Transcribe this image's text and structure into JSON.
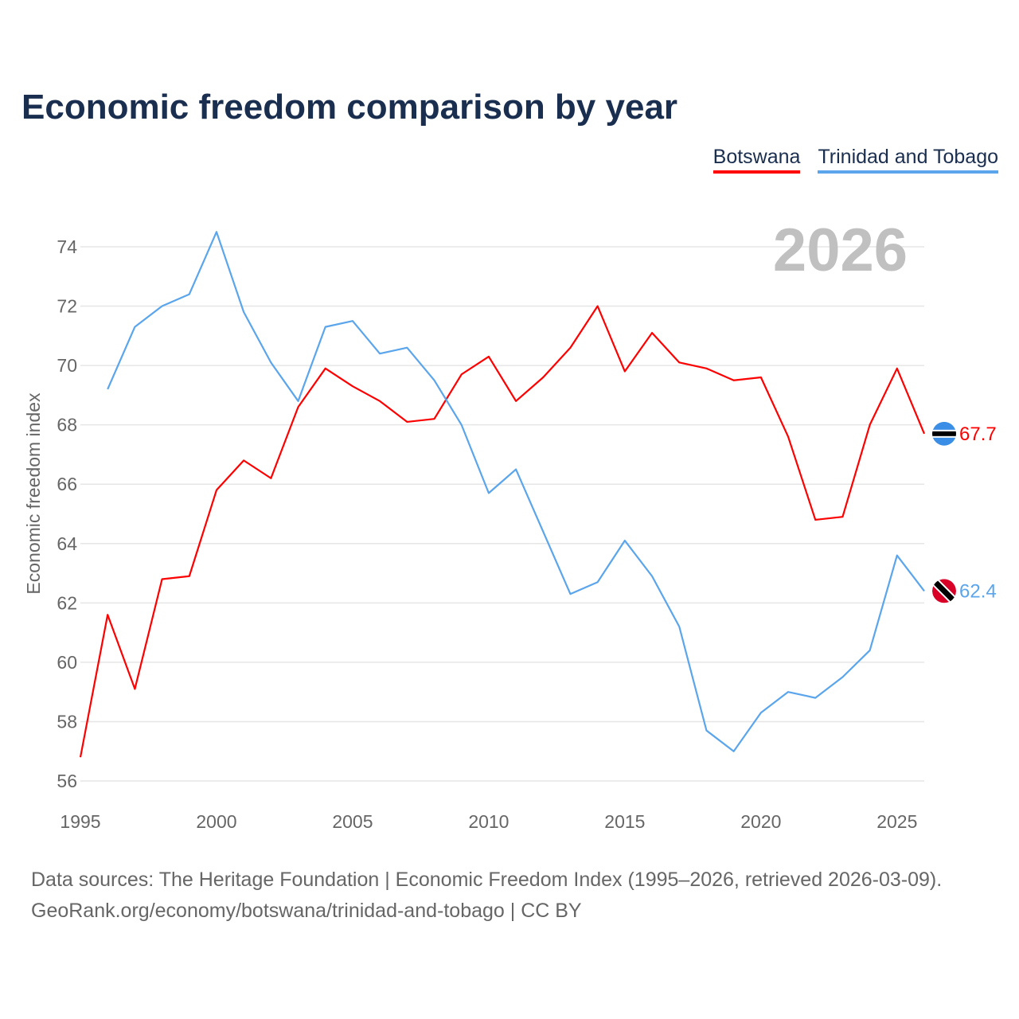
{
  "title": "Economic freedom comparison by year",
  "legend": [
    {
      "label": "Botswana",
      "color": "#ff0000"
    },
    {
      "label": "Trinidad and Tobago",
      "color": "#5aa5ec"
    }
  ],
  "year_watermark": "2026",
  "source_line1": "Data sources: The Heritage Foundation | Economic Freedom Index (1995–2026, retrieved 2026-03-09).",
  "source_line2": "GeoRank.org/economy/botswana/trinidad-and-tobago | CC BY",
  "chart_data": {
    "type": "line",
    "title": "Economic freedom comparison by year",
    "xlabel": "",
    "ylabel": "Economic freedom index",
    "xlim": [
      1995,
      2026
    ],
    "ylim": [
      56,
      74.5
    ],
    "xticks": [
      1995,
      2000,
      2005,
      2010,
      2015,
      2020,
      2025
    ],
    "yticks": [
      56,
      58,
      60,
      62,
      64,
      66,
      68,
      70,
      72,
      74
    ],
    "grid": true,
    "legend_position": "top-right",
    "series": [
      {
        "name": "Botswana",
        "color": "#ff0000",
        "end_label": "67.7",
        "flag": "botswana-flag",
        "x": [
          1995,
          1996,
          1997,
          1998,
          1999,
          2000,
          2001,
          2002,
          2003,
          2004,
          2005,
          2006,
          2007,
          2008,
          2009,
          2010,
          2011,
          2012,
          2013,
          2014,
          2015,
          2016,
          2017,
          2018,
          2019,
          2020,
          2021,
          2022,
          2023,
          2024,
          2025,
          2026
        ],
        "y": [
          56.8,
          61.6,
          59.1,
          62.8,
          62.9,
          65.8,
          66.8,
          66.2,
          68.6,
          69.9,
          69.3,
          68.8,
          68.1,
          68.2,
          69.7,
          70.3,
          68.8,
          69.6,
          70.6,
          72.0,
          69.8,
          71.1,
          70.1,
          69.9,
          69.5,
          69.6,
          67.6,
          64.8,
          64.9,
          68.0,
          69.9,
          67.7
        ]
      },
      {
        "name": "Trinidad and Tobago",
        "color": "#5aa5ec",
        "end_label": "62.4",
        "flag": "trinidad-flag",
        "x": [
          1996,
          1997,
          1998,
          1999,
          2000,
          2001,
          2002,
          2003,
          2004,
          2005,
          2006,
          2007,
          2008,
          2009,
          2010,
          2011,
          2012,
          2013,
          2014,
          2015,
          2016,
          2017,
          2018,
          2019,
          2020,
          2021,
          2022,
          2023,
          2024,
          2025,
          2026
        ],
        "y": [
          69.2,
          71.3,
          72.0,
          72.4,
          74.5,
          71.8,
          70.1,
          68.8,
          71.3,
          71.5,
          70.4,
          70.6,
          69.5,
          68.0,
          65.7,
          66.5,
          64.4,
          62.3,
          62.7,
          64.1,
          62.9,
          61.2,
          57.7,
          57.0,
          58.3,
          59.0,
          58.8,
          59.5,
          60.4,
          63.6,
          62.4
        ]
      }
    ]
  }
}
